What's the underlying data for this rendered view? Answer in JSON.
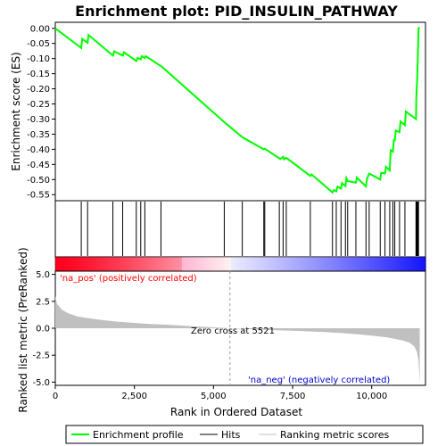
{
  "chart_data": {
    "type": "line",
    "title": "Enrichment plot: PID_INSULIN_PATHWAY",
    "xlabel": "Rank in Ordered Dataset",
    "xlim": [
      0,
      11700
    ],
    "x_ticks": [
      0,
      2500,
      5000,
      7500,
      10000
    ],
    "x_tick_labels": [
      "0",
      "2,500",
      "5,000",
      "7,500",
      "10,000"
    ],
    "es_panel": {
      "ylabel": "Enrichment score (ES)",
      "ylim": [
        -0.57,
        0.02
      ],
      "y_ticks": [
        0.0,
        -0.05,
        -0.1,
        -0.15,
        -0.2,
        -0.25,
        -0.3,
        -0.35,
        -0.4,
        -0.45,
        -0.5,
        -0.55
      ],
      "y_tick_labels": [
        "0.00",
        "-0.05",
        "-0.10",
        "-0.15",
        "-0.20",
        "-0.25",
        "-0.30",
        "-0.35",
        "-0.40",
        "-0.45",
        "-0.50",
        "-0.55"
      ],
      "series_name": "Enrichment profile",
      "color": "#00ff00",
      "points": [
        [
          0,
          0.0
        ],
        [
          820,
          -0.065
        ],
        [
          850,
          -0.035
        ],
        [
          1020,
          -0.048
        ],
        [
          1050,
          -0.022
        ],
        [
          1820,
          -0.09
        ],
        [
          1860,
          -0.076
        ],
        [
          2130,
          -0.09
        ],
        [
          2170,
          -0.079
        ],
        [
          2560,
          -0.108
        ],
        [
          2600,
          -0.098
        ],
        [
          2700,
          -0.103
        ],
        [
          2730,
          -0.092
        ],
        [
          2830,
          -0.098
        ],
        [
          2860,
          -0.092
        ],
        [
          3340,
          -0.125
        ],
        [
          3380,
          -0.128
        ],
        [
          5340,
          -0.31
        ],
        [
          5910,
          -0.36
        ],
        [
          6590,
          -0.4
        ],
        [
          6620,
          -0.398
        ],
        [
          7080,
          -0.43
        ],
        [
          7110,
          -0.432
        ],
        [
          7200,
          -0.425
        ],
        [
          7230,
          -0.433
        ],
        [
          7300,
          -0.428
        ],
        [
          8060,
          -0.488
        ],
        [
          8100,
          -0.483
        ],
        [
          8760,
          -0.543
        ],
        [
          8800,
          -0.535
        ],
        [
          8880,
          -0.539
        ],
        [
          8920,
          -0.523
        ],
        [
          9030,
          -0.53
        ],
        [
          9060,
          -0.512
        ],
        [
          9170,
          -0.522
        ],
        [
          9200,
          -0.496
        ],
        [
          9240,
          -0.505
        ],
        [
          9500,
          -0.51
        ],
        [
          9530,
          -0.493
        ],
        [
          9820,
          -0.523
        ],
        [
          9850,
          -0.497
        ],
        [
          9920,
          -0.48
        ],
        [
          10270,
          -0.5
        ],
        [
          10300,
          -0.478
        ],
        [
          10420,
          -0.48
        ],
        [
          10450,
          -0.458
        ],
        [
          10570,
          -0.47
        ],
        [
          10600,
          -0.403
        ],
        [
          10670,
          -0.408
        ],
        [
          10700,
          -0.37
        ],
        [
          10730,
          -0.37
        ],
        [
          10760,
          -0.338
        ],
        [
          10880,
          -0.343
        ],
        [
          10910,
          -0.308
        ],
        [
          11050,
          -0.32
        ],
        [
          11080,
          -0.275
        ],
        [
          11400,
          -0.3
        ],
        [
          11410,
          -0.23
        ],
        [
          11440,
          -0.16
        ],
        [
          11460,
          -0.085
        ],
        [
          11470,
          -0.05
        ],
        [
          11480,
          0.0
        ],
        [
          11520,
          0.003
        ]
      ]
    },
    "hits": [
      820,
      1020,
      1820,
      2130,
      2560,
      2700,
      2830,
      3340,
      5340,
      5910,
      6590,
      6620,
      7080,
      7200,
      7300,
      8060,
      8760,
      8880,
      9030,
      9170,
      9240,
      9500,
      9820,
      9920,
      10270,
      10420,
      10570,
      10670,
      10730,
      10880,
      11050,
      11400,
      11410,
      11430,
      11440,
      11460,
      11470,
      11480
    ],
    "ranked_metric_panel": {
      "ylabel": "Ranked list metric (PreRanked)",
      "ylim": [
        -5.3,
        5.3
      ],
      "y_ticks": [
        5.0,
        2.5,
        0.0,
        -2.5,
        -5.0
      ],
      "y_tick_labels": [
        "5.0",
        "2.5",
        "0.0",
        "-2.5",
        "-5.0"
      ],
      "series_name": "Ranking metric scores",
      "color": "#c0c0c0",
      "points": [
        [
          0,
          3.0
        ],
        [
          50,
          2.3
        ],
        [
          200,
          1.75
        ],
        [
          400,
          1.4
        ],
        [
          700,
          1.1
        ],
        [
          1000,
          0.95
        ],
        [
          1500,
          0.75
        ],
        [
          2000,
          0.6
        ],
        [
          2500,
          0.5
        ],
        [
          3000,
          0.4
        ],
        [
          3500,
          0.33
        ],
        [
          4000,
          0.25
        ],
        [
          4500,
          0.16
        ],
        [
          5000,
          0.08
        ],
        [
          5521,
          0.0
        ],
        [
          6000,
          -0.07
        ],
        [
          6500,
          -0.13
        ],
        [
          7000,
          -0.18
        ],
        [
          7500,
          -0.23
        ],
        [
          8000,
          -0.29
        ],
        [
          8500,
          -0.36
        ],
        [
          9000,
          -0.44
        ],
        [
          9500,
          -0.55
        ],
        [
          10000,
          -0.68
        ],
        [
          10500,
          -0.85
        ],
        [
          11000,
          -1.15
        ],
        [
          11200,
          -1.35
        ],
        [
          11350,
          -1.7
        ],
        [
          11430,
          -2.2
        ],
        [
          11480,
          -3.0
        ],
        [
          11500,
          -4.0
        ],
        [
          11520,
          -5.1
        ]
      ]
    },
    "zero_cross_label": "Zero cross at 5521",
    "zero_cross": 5521,
    "pos_label": "'na_pos' (positively correlated)",
    "neg_label": "'na_neg' (negatively correlated)",
    "legend": {
      "placement": "bottom",
      "entries": [
        {
          "label": "Enrichment profile",
          "color": "#00ff00"
        },
        {
          "label": "Hits",
          "color": "#000000"
        },
        {
          "label": "Ranking metric scores",
          "color": "#c0c0c0"
        }
      ]
    }
  }
}
